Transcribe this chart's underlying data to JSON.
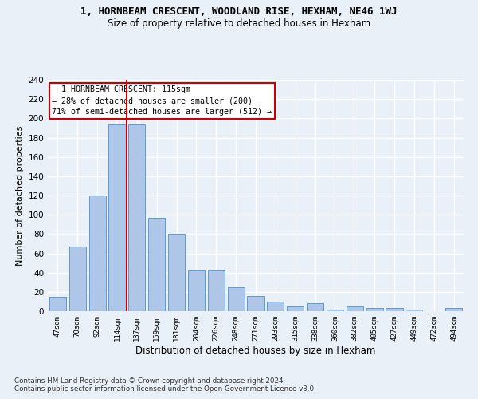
{
  "title": "1, HORNBEAM CRESCENT, WOODLAND RISE, HEXHAM, NE46 1WJ",
  "subtitle": "Size of property relative to detached houses in Hexham",
  "xlabel": "Distribution of detached houses by size in Hexham",
  "ylabel": "Number of detached properties",
  "categories": [
    "47sqm",
    "70sqm",
    "92sqm",
    "114sqm",
    "137sqm",
    "159sqm",
    "181sqm",
    "204sqm",
    "226sqm",
    "248sqm",
    "271sqm",
    "293sqm",
    "315sqm",
    "338sqm",
    "360sqm",
    "382sqm",
    "405sqm",
    "427sqm",
    "449sqm",
    "472sqm",
    "494sqm"
  ],
  "values": [
    15,
    67,
    120,
    194,
    194,
    97,
    80,
    43,
    43,
    25,
    16,
    10,
    5,
    8,
    2,
    5,
    3,
    3,
    2,
    0,
    3
  ],
  "bar_color": "#aec6e8",
  "bar_edge_color": "#5b9bd5",
  "red_line_index": 3.5,
  "annotation_line1": "  1 HORNBEAM CRESCENT: 115sqm",
  "annotation_line2": "← 28% of detached houses are smaller (200)",
  "annotation_line3": "71% of semi-detached houses are larger (512) →",
  "annotation_box_color": "#ffffff",
  "annotation_box_edge": "#cc0000",
  "footer1": "Contains HM Land Registry data © Crown copyright and database right 2024.",
  "footer2": "Contains public sector information licensed under the Open Government Licence v3.0.",
  "bg_color": "#eaf0f8",
  "plot_bg_color": "#eaf0f8",
  "grid_color": "#ffffff",
  "ylim": [
    0,
    240
  ],
  "yticks": [
    0,
    20,
    40,
    60,
    80,
    100,
    120,
    140,
    160,
    180,
    200,
    220,
    240
  ]
}
